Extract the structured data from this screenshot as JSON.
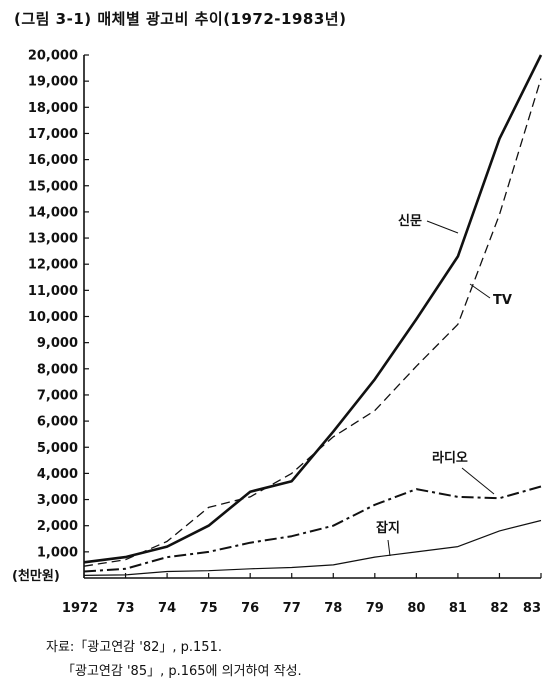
{
  "title": "(그림 3-1) 매체별 광고비 추이(1972-1983년)",
  "unit_label": "(천만원)",
  "source_lines": [
    "자료:「광고연감 '82」, p.151.",
    "「광고연감 '85」, p.165에 의거하여 작성."
  ],
  "chart_data": {
    "type": "line",
    "title": "(그림 3-1) 매체별 광고비 추이(1972-1983년)",
    "x_tick_labels": [
      "1972",
      "73",
      "74",
      "75",
      "76",
      "77",
      "78",
      "79",
      "80",
      "81",
      "82",
      "83"
    ],
    "x": [
      1972,
      1973,
      1974,
      1975,
      1976,
      1977,
      1978,
      1979,
      1980,
      1981,
      1982,
      1983
    ],
    "ylim": [
      0,
      20000
    ],
    "y_tick_labels": [
      "1,000",
      "2,000",
      "3,000",
      "4,000",
      "5,000",
      "6,000",
      "7,000",
      "8,000",
      "9,000",
      "10,000",
      "11,000",
      "12,000",
      "13,000",
      "14,000",
      "15,000",
      "16,000",
      "17,000",
      "18,000",
      "19,000",
      "20,000"
    ],
    "ylabel": "(천만원)",
    "grid": false,
    "series": [
      {
        "name": "신문",
        "style": "solid-thick",
        "values": [
          600,
          800,
          1200,
          2000,
          3300,
          3700,
          5600,
          7600,
          9900,
          12300,
          16800,
          20000
        ]
      },
      {
        "name": "TV",
        "style": "dashed",
        "values": [
          450,
          700,
          1400,
          2700,
          3100,
          4000,
          5400,
          6400,
          8100,
          9700,
          13900,
          19100
        ]
      },
      {
        "name": "라디오",
        "style": "dashdot",
        "values": [
          250,
          350,
          800,
          1000,
          1350,
          1600,
          2000,
          2800,
          3400,
          3100,
          3050,
          3500
        ]
      },
      {
        "name": "잡지",
        "style": "solid-thin",
        "values": [
          100,
          120,
          250,
          280,
          350,
          400,
          500,
          800,
          1000,
          1200,
          1800,
          2200
        ]
      }
    ]
  }
}
